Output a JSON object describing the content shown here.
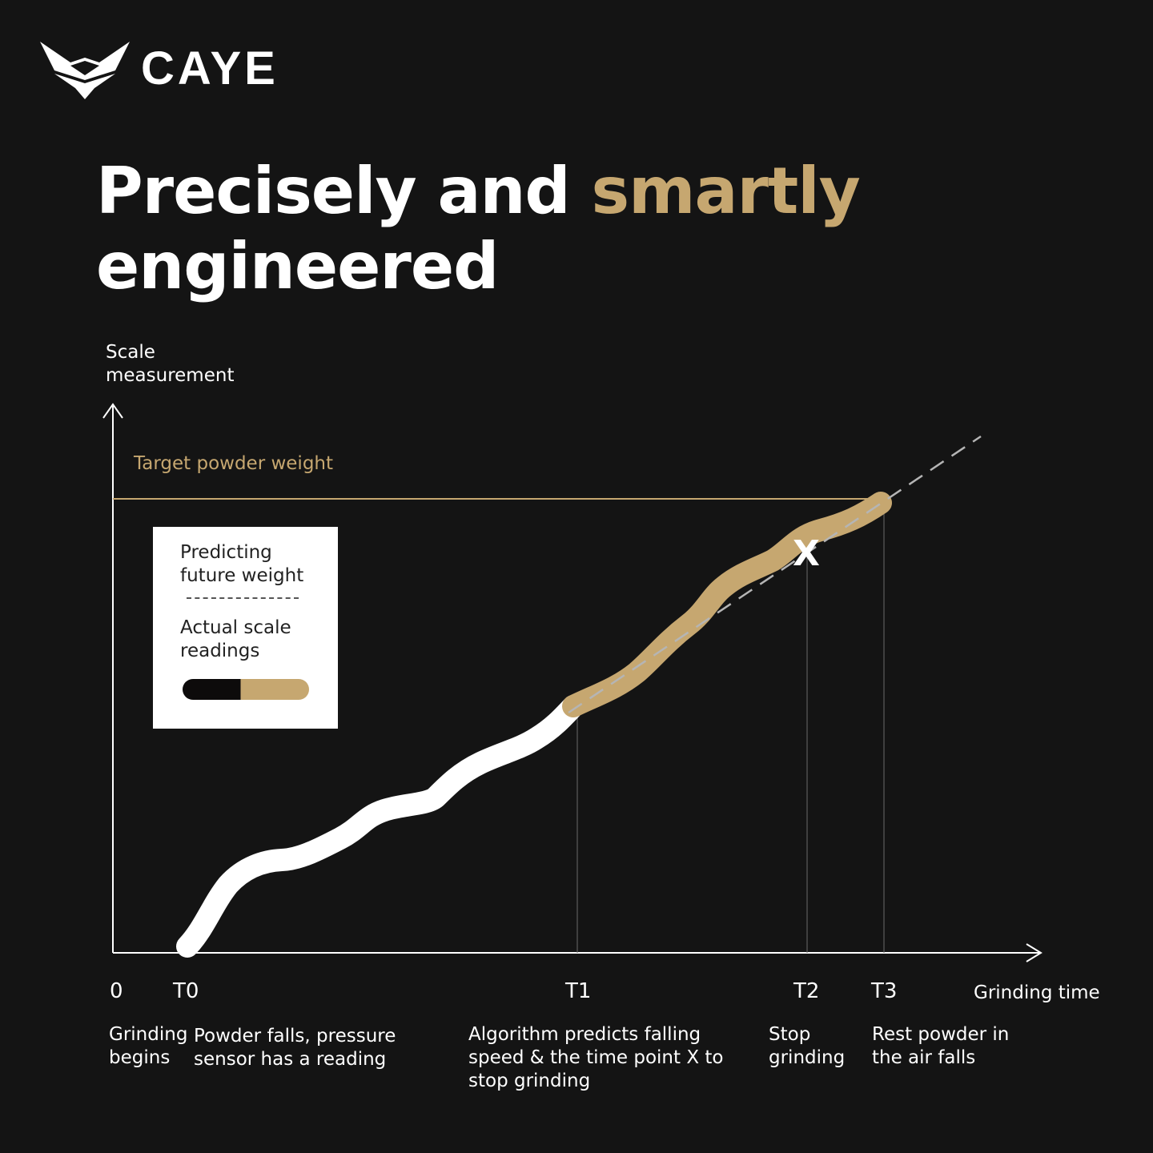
{
  "brand": {
    "name": "CAYE"
  },
  "headline": {
    "part1": "Precisely and ",
    "accent": "smartly",
    "part2": "engineered"
  },
  "axis": {
    "y_label_line1": "Scale",
    "y_label_line2": "measurement",
    "x_label": "Grinding time"
  },
  "target": {
    "label": "Target powder weight"
  },
  "legend": {
    "predict_line1": "Predicting",
    "predict_line2": "future weight",
    "actual_line1": "Actual scale",
    "actual_line2": "readings"
  },
  "ticks": [
    "0",
    "T0",
    "T1",
    "T2",
    "T3"
  ],
  "marker": "X",
  "descriptions": {
    "d0_line1": "Grinding",
    "d0_line2": "begins",
    "dT0_line1": "Powder falls, pressure",
    "dT0_line2": "sensor has a reading",
    "dT1_line1": "Algorithm predicts falling",
    "dT1_line2": "speed & the time point X to",
    "dT1_line3": "stop grinding",
    "dT2_line1": "Stop",
    "dT2_line2": "grinding",
    "dT3_line1": "Rest powder in",
    "dT3_line2": "the air falls"
  },
  "colors": {
    "background": "#141414",
    "accent": "#c6a770",
    "curve": "#ffffff"
  }
}
